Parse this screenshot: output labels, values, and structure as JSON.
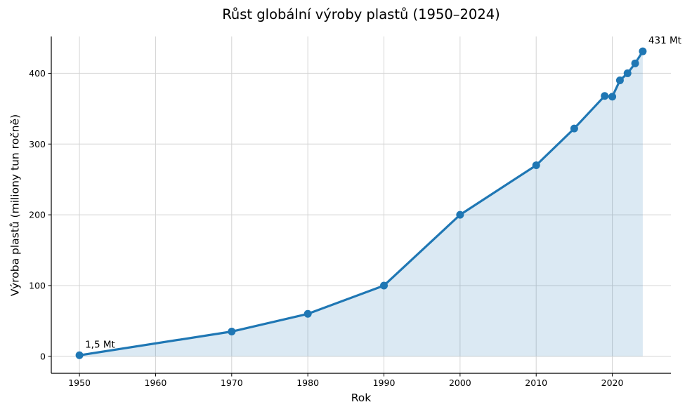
{
  "chart_data": {
    "type": "line",
    "title": "Růst globální výroby plastů (1950–2024)",
    "xlabel": "Rok",
    "ylabel": "Výroba plastů (miliony tun ročně)",
    "series": [
      {
        "name": "Výroba plastů",
        "x": [
          1950,
          1970,
          1980,
          1990,
          2000,
          2010,
          2015,
          2019,
          2020,
          2021,
          2022,
          2023,
          2024
        ],
        "y": [
          1.5,
          35,
          60,
          100,
          200,
          270,
          322,
          368,
          367,
          390,
          400,
          414,
          431
        ]
      }
    ],
    "xticks": [
      1950,
      1960,
      1970,
      1980,
      1990,
      2000,
      2010,
      2020
    ],
    "yticks": [
      0,
      100,
      200,
      300,
      400
    ],
    "xlim": [
      1946.3,
      2027.7
    ],
    "ylim": [
      -24,
      452
    ],
    "grid": true,
    "legend": false,
    "area_fill_baseline": 0,
    "annotations": [
      {
        "text": "1,5 Mt",
        "x": 1950,
        "y": 1.5
      },
      {
        "text": "431 Mt",
        "x": 2024,
        "y": 431
      }
    ],
    "colors": {
      "line": "#1f77b4",
      "marker": "#1f77b4",
      "area_fill": "rgba(31,119,180,0.16)",
      "grid": "#d4d4d4",
      "spine": "#000000",
      "tick_text": "#000000"
    }
  }
}
